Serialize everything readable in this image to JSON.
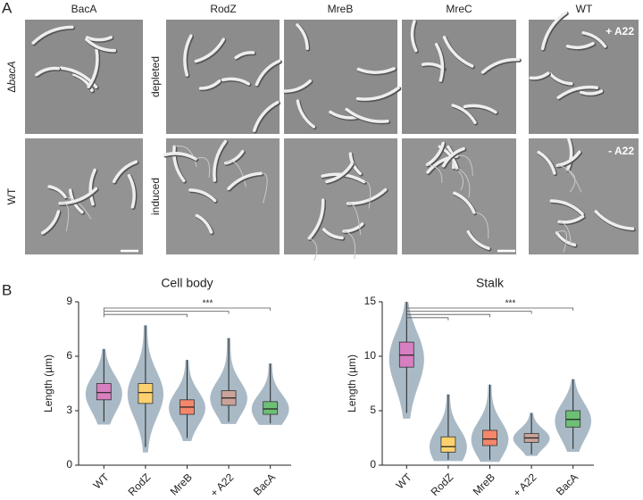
{
  "panel_a": {
    "label": "A",
    "columns": [
      "BacA",
      "RodZ",
      "MreB",
      "MreC",
      "WT"
    ],
    "left_rows": {
      "delta": "Δ",
      "gene": "bacA",
      "wt": "WT"
    },
    "rows": [
      "depleted",
      "induced"
    ],
    "treatments": [
      "+ A22",
      "- A22"
    ]
  },
  "panel_b_label": "B",
  "chart_data": [
    {
      "type": "violin",
      "title": "Cell body",
      "ylabel": "Length (µm)",
      "categories": [
        "WT",
        "RodZ",
        "MreB",
        "+ A22",
        "BacA"
      ],
      "colors": [
        "#d77fc0",
        "#fdd26e",
        "#f4866a",
        "#c9a39a",
        "#6dbf75"
      ],
      "min": [
        2.4,
        1.0,
        1.5,
        2.4,
        2.3
      ],
      "q1": [
        3.6,
        3.4,
        2.8,
        3.3,
        2.8
      ],
      "median": [
        4.0,
        4.0,
        3.2,
        3.7,
        3.1
      ],
      "q3": [
        4.5,
        4.5,
        3.6,
        4.1,
        3.5
      ],
      "max": [
        6.4,
        7.7,
        5.8,
        7.0,
        5.6
      ],
      "ylim": [
        0,
        9
      ],
      "yticks": [
        0,
        3,
        6,
        9
      ],
      "annotation": "***"
    },
    {
      "type": "violin",
      "title": "Stalk",
      "ylabel": "Length (µm)",
      "categories": [
        "WT",
        "RodZ",
        "MreB",
        "+ A22",
        "BacA"
      ],
      "colors": [
        "#d77fc0",
        "#fdd26e",
        "#f4866a",
        "#c9a39a",
        "#6dbf75"
      ],
      "min": [
        4.8,
        0.5,
        0.5,
        1.0,
        1.5
      ],
      "q1": [
        9.0,
        1.2,
        1.8,
        2.1,
        3.5
      ],
      "median": [
        10.1,
        1.7,
        2.4,
        2.5,
        4.2
      ],
      "q3": [
        11.3,
        2.6,
        3.2,
        2.9,
        5.0
      ],
      "max": [
        15.0,
        6.5,
        7.4,
        4.8,
        7.9
      ],
      "ylim": [
        0,
        15
      ],
      "yticks": [
        0,
        5,
        10,
        15
      ],
      "annotation": "***"
    }
  ]
}
